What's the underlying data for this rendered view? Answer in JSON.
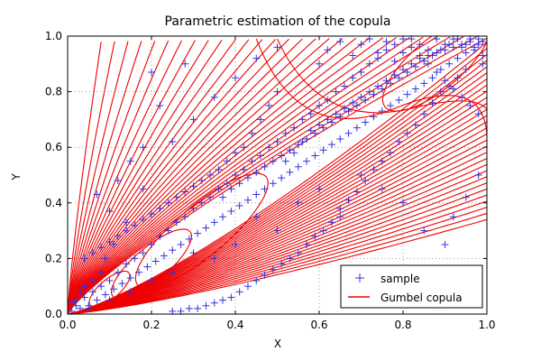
{
  "chart_data": {
    "type": "scatter",
    "title": "Parametric estimation of the copula",
    "xlabel": "X",
    "ylabel": "Y",
    "xlim": [
      0.0,
      1.0
    ],
    "ylim": [
      0.0,
      1.0
    ],
    "x_ticks": [
      "0.0",
      "0.2",
      "0.4",
      "0.6",
      "0.8",
      "1.0"
    ],
    "y_ticks": [
      "0.0",
      "0.2",
      "0.4",
      "0.6",
      "0.8",
      "1.0"
    ],
    "grid": true,
    "legend_position": "lower-right",
    "legend": [
      {
        "label": "sample",
        "marker": "+",
        "color": "#3333dd"
      },
      {
        "label": "Gumbel copula",
        "marker": "line",
        "color": "#ee0000"
      }
    ],
    "series": [
      {
        "name": "sample",
        "kind": "scatter",
        "marker": "+",
        "color": "#3333dd",
        "points": [
          [
            0.01,
            0.01
          ],
          [
            0.02,
            0.03
          ],
          [
            0.03,
            0.02
          ],
          [
            0.04,
            0.06
          ],
          [
            0.05,
            0.03
          ],
          [
            0.06,
            0.08
          ],
          [
            0.07,
            0.05
          ],
          [
            0.08,
            0.1
          ],
          [
            0.09,
            0.07
          ],
          [
            0.1,
            0.12
          ],
          [
            0.11,
            0.09
          ],
          [
            0.12,
            0.15
          ],
          [
            0.13,
            0.11
          ],
          [
            0.14,
            0.18
          ],
          [
            0.15,
            0.13
          ],
          [
            0.16,
            0.2
          ],
          [
            0.17,
            0.15
          ],
          [
            0.18,
            0.22
          ],
          [
            0.19,
            0.17
          ],
          [
            0.2,
            0.25
          ],
          [
            0.21,
            0.19
          ],
          [
            0.22,
            0.28
          ],
          [
            0.23,
            0.21
          ],
          [
            0.24,
            0.3
          ],
          [
            0.25,
            0.23
          ],
          [
            0.26,
            0.33
          ],
          [
            0.27,
            0.25
          ],
          [
            0.28,
            0.35
          ],
          [
            0.29,
            0.27
          ],
          [
            0.3,
            0.38
          ],
          [
            0.31,
            0.29
          ],
          [
            0.32,
            0.4
          ],
          [
            0.33,
            0.31
          ],
          [
            0.34,
            0.42
          ],
          [
            0.35,
            0.33
          ],
          [
            0.36,
            0.45
          ],
          [
            0.37,
            0.35
          ],
          [
            0.38,
            0.47
          ],
          [
            0.39,
            0.37
          ],
          [
            0.4,
            0.5
          ],
          [
            0.41,
            0.39
          ],
          [
            0.42,
            0.52
          ],
          [
            0.43,
            0.41
          ],
          [
            0.44,
            0.55
          ],
          [
            0.45,
            0.43
          ],
          [
            0.46,
            0.57
          ],
          [
            0.47,
            0.45
          ],
          [
            0.48,
            0.6
          ],
          [
            0.49,
            0.47
          ],
          [
            0.5,
            0.62
          ],
          [
            0.51,
            0.49
          ],
          [
            0.52,
            0.65
          ],
          [
            0.53,
            0.51
          ],
          [
            0.54,
            0.67
          ],
          [
            0.55,
            0.53
          ],
          [
            0.56,
            0.7
          ],
          [
            0.57,
            0.55
          ],
          [
            0.58,
            0.72
          ],
          [
            0.59,
            0.57
          ],
          [
            0.6,
            0.75
          ],
          [
            0.61,
            0.59
          ],
          [
            0.62,
            0.77
          ],
          [
            0.63,
            0.61
          ],
          [
            0.64,
            0.8
          ],
          [
            0.65,
            0.63
          ],
          [
            0.66,
            0.82
          ],
          [
            0.67,
            0.65
          ],
          [
            0.68,
            0.85
          ],
          [
            0.69,
            0.67
          ],
          [
            0.7,
            0.87
          ],
          [
            0.71,
            0.69
          ],
          [
            0.72,
            0.9
          ],
          [
            0.73,
            0.71
          ],
          [
            0.74,
            0.92
          ],
          [
            0.75,
            0.73
          ],
          [
            0.76,
            0.95
          ],
          [
            0.77,
            0.75
          ],
          [
            0.78,
            0.97
          ],
          [
            0.79,
            0.77
          ],
          [
            0.8,
            0.99
          ],
          [
            0.81,
            0.79
          ],
          [
            0.82,
            0.96
          ],
          [
            0.83,
            0.81
          ],
          [
            0.84,
            0.93
          ],
          [
            0.85,
            0.83
          ],
          [
            0.86,
            0.9
          ],
          [
            0.87,
            0.85
          ],
          [
            0.88,
            0.87
          ],
          [
            0.89,
            0.88
          ],
          [
            0.9,
            0.84
          ],
          [
            0.91,
            0.9
          ],
          [
            0.92,
            0.81
          ],
          [
            0.93,
            0.92
          ],
          [
            0.94,
            0.78
          ],
          [
            0.95,
            0.94
          ],
          [
            0.96,
            0.75
          ],
          [
            0.97,
            0.96
          ],
          [
            0.98,
            0.72
          ],
          [
            0.99,
            0.98
          ],
          [
            0.9,
            0.25
          ],
          [
            0.92,
            0.35
          ],
          [
            0.95,
            0.42
          ],
          [
            0.98,
            0.5
          ],
          [
            0.85,
            0.3
          ],
          [
            0.8,
            0.4
          ],
          [
            0.75,
            0.45
          ],
          [
            0.7,
            0.5
          ],
          [
            0.65,
            0.35
          ],
          [
            0.6,
            0.45
          ],
          [
            0.55,
            0.4
          ],
          [
            0.5,
            0.3
          ],
          [
            0.45,
            0.35
          ],
          [
            0.4,
            0.25
          ],
          [
            0.35,
            0.2
          ],
          [
            0.3,
            0.22
          ],
          [
            0.25,
            0.15
          ],
          [
            0.2,
            0.12
          ],
          [
            0.15,
            0.08
          ],
          [
            0.1,
            0.05
          ],
          [
            0.05,
            0.02
          ],
          [
            0.07,
            0.43
          ],
          [
            0.1,
            0.37
          ],
          [
            0.12,
            0.48
          ],
          [
            0.15,
            0.55
          ],
          [
            0.18,
            0.6
          ],
          [
            0.2,
            0.87
          ],
          [
            0.25,
            0.62
          ],
          [
            0.3,
            0.7
          ],
          [
            0.35,
            0.78
          ],
          [
            0.4,
            0.85
          ],
          [
            0.45,
            0.92
          ],
          [
            0.5,
            0.96
          ],
          [
            0.28,
            0.9
          ],
          [
            0.22,
            0.75
          ],
          [
            0.18,
            0.45
          ],
          [
            0.14,
            0.33
          ],
          [
            0.11,
            0.25
          ],
          [
            0.09,
            0.2
          ],
          [
            0.08,
            0.15
          ],
          [
            0.06,
            0.12
          ],
          [
            0.04,
            0.1
          ],
          [
            0.03,
            0.08
          ],
          [
            0.02,
            0.05
          ],
          [
            0.01,
            0.04
          ],
          [
            0.6,
            0.9
          ],
          [
            0.62,
            0.95
          ],
          [
            0.65,
            0.98
          ],
          [
            0.68,
            0.93
          ],
          [
            0.7,
            0.97
          ],
          [
            0.72,
            0.99
          ],
          [
            0.74,
            0.94
          ],
          [
            0.76,
            0.98
          ],
          [
            0.78,
            0.91
          ],
          [
            0.8,
            0.94
          ],
          [
            0.82,
            0.99
          ],
          [
            0.84,
            0.97
          ],
          [
            0.86,
            0.95
          ],
          [
            0.88,
            0.99
          ],
          [
            0.9,
            0.97
          ],
          [
            0.92,
            0.99
          ],
          [
            0.94,
            0.96
          ],
          [
            0.96,
            0.99
          ],
          [
            0.98,
            0.97
          ],
          [
            0.99,
            0.93
          ],
          [
            0.95,
            0.88
          ],
          [
            0.93,
            0.85
          ],
          [
            0.91,
            0.82
          ],
          [
            0.89,
            0.8
          ],
          [
            0.87,
            0.76
          ],
          [
            0.85,
            0.72
          ],
          [
            0.83,
            0.68
          ],
          [
            0.81,
            0.65
          ],
          [
            0.79,
            0.62
          ],
          [
            0.77,
            0.58
          ],
          [
            0.75,
            0.55
          ],
          [
            0.73,
            0.52
          ],
          [
            0.71,
            0.48
          ],
          [
            0.69,
            0.44
          ],
          [
            0.67,
            0.41
          ],
          [
            0.65,
            0.38
          ],
          [
            0.63,
            0.33
          ],
          [
            0.61,
            0.3
          ],
          [
            0.59,
            0.28
          ],
          [
            0.57,
            0.25
          ],
          [
            0.55,
            0.22
          ],
          [
            0.53,
            0.2
          ],
          [
            0.51,
            0.18
          ],
          [
            0.49,
            0.16
          ],
          [
            0.47,
            0.14
          ],
          [
            0.45,
            0.12
          ],
          [
            0.43,
            0.1
          ],
          [
            0.41,
            0.08
          ],
          [
            0.39,
            0.06
          ],
          [
            0.37,
            0.05
          ],
          [
            0.35,
            0.04
          ],
          [
            0.33,
            0.03
          ],
          [
            0.31,
            0.02
          ],
          [
            0.29,
            0.02
          ],
          [
            0.27,
            0.01
          ],
          [
            0.25,
            0.01
          ],
          [
            0.5,
            0.8
          ],
          [
            0.48,
            0.75
          ],
          [
            0.46,
            0.7
          ],
          [
            0.44,
            0.65
          ],
          [
            0.42,
            0.6
          ],
          [
            0.4,
            0.58
          ],
          [
            0.38,
            0.55
          ],
          [
            0.36,
            0.52
          ],
          [
            0.34,
            0.5
          ],
          [
            0.32,
            0.48
          ],
          [
            0.3,
            0.46
          ],
          [
            0.28,
            0.44
          ],
          [
            0.26,
            0.42
          ],
          [
            0.24,
            0.4
          ],
          [
            0.22,
            0.38
          ],
          [
            0.2,
            0.36
          ],
          [
            0.18,
            0.34
          ],
          [
            0.16,
            0.32
          ],
          [
            0.14,
            0.3
          ],
          [
            0.12,
            0.28
          ],
          [
            0.1,
            0.26
          ],
          [
            0.08,
            0.24
          ],
          [
            0.06,
            0.22
          ],
          [
            0.04,
            0.2
          ],
          [
            0.52,
            0.55
          ],
          [
            0.54,
            0.58
          ],
          [
            0.56,
            0.62
          ],
          [
            0.58,
            0.66
          ],
          [
            0.6,
            0.68
          ],
          [
            0.62,
            0.7
          ],
          [
            0.64,
            0.72
          ],
          [
            0.66,
            0.74
          ],
          [
            0.68,
            0.76
          ],
          [
            0.7,
            0.78
          ],
          [
            0.72,
            0.8
          ],
          [
            0.74,
            0.82
          ],
          [
            0.76,
            0.84
          ],
          [
            0.78,
            0.86
          ],
          [
            0.8,
            0.88
          ],
          [
            0.82,
            0.9
          ],
          [
            0.84,
            0.92
          ],
          [
            0.86,
            0.93
          ],
          [
            0.88,
            0.94
          ],
          [
            0.9,
            0.95
          ],
          [
            0.92,
            0.96
          ],
          [
            0.94,
            0.97
          ],
          [
            0.96,
            0.98
          ],
          [
            0.98,
            0.99
          ],
          [
            0.37,
            0.42
          ],
          [
            0.39,
            0.45
          ],
          [
            0.41,
            0.47
          ],
          [
            0.43,
            0.49
          ],
          [
            0.45,
            0.51
          ],
          [
            0.47,
            0.53
          ],
          [
            0.49,
            0.55
          ],
          [
            0.51,
            0.57
          ],
          [
            0.53,
            0.59
          ],
          [
            0.55,
            0.61
          ],
          [
            0.57,
            0.63
          ],
          [
            0.59,
            0.65
          ],
          [
            0.61,
            0.67
          ],
          [
            0.63,
            0.69
          ],
          [
            0.65,
            0.71
          ],
          [
            0.67,
            0.73
          ],
          [
            0.69,
            0.75
          ],
          [
            0.71,
            0.77
          ],
          [
            0.73,
            0.79
          ],
          [
            0.75,
            0.81
          ],
          [
            0.77,
            0.83
          ],
          [
            0.79,
            0.85
          ],
          [
            0.81,
            0.87
          ],
          [
            0.83,
            0.89
          ],
          [
            0.85,
            0.91
          ],
          [
            0.87,
            0.93
          ],
          [
            0.89,
            0.95
          ],
          [
            0.91,
            0.97
          ],
          [
            0.93,
            0.99
          ],
          [
            0.95,
            0.97
          ],
          [
            0.97,
            0.95
          ],
          [
            0.99,
            0.9
          ]
        ]
      },
      {
        "name": "Gumbel copula",
        "kind": "contour",
        "color": "#ee0000",
        "description": "Density contour lines of the fitted Gumbel copula"
      }
    ]
  }
}
